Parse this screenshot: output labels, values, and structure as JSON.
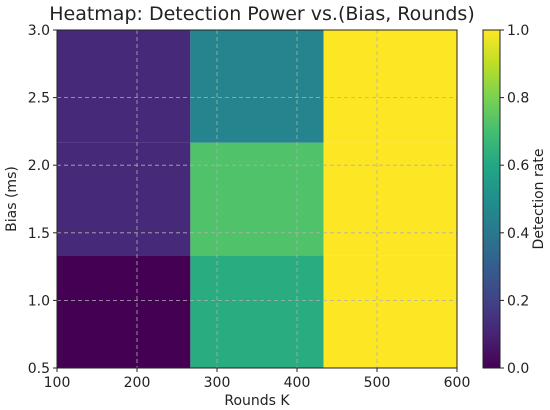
{
  "chart_data": {
    "type": "heatmap",
    "title": "Heatmap: Detection Power vs.(Bias, Rounds)",
    "xlabel": "Rounds K",
    "ylabel": "Bias (ms)",
    "xlim": [
      100,
      600
    ],
    "ylim": [
      0.5,
      3.0
    ],
    "xticks": [
      100,
      200,
      300,
      400,
      500,
      600
    ],
    "yticks": [
      0.5,
      1.0,
      1.5,
      2.0,
      2.5,
      3.0
    ],
    "x_edges": [
      100,
      266.7,
      433.3,
      600
    ],
    "y_edges": [
      0.5,
      1.333,
      2.167,
      3.0
    ],
    "columns_rounds": [
      100,
      350,
      600
    ],
    "rows_bias": [
      0.5,
      1.75,
      3.0
    ],
    "values": [
      [
        0.0,
        0.62,
        1.0
      ],
      [
        0.12,
        0.72,
        1.0
      ],
      [
        0.12,
        0.45,
        1.0
      ]
    ],
    "colorbar": {
      "label": "Detection rate",
      "range": [
        0.0,
        1.0
      ],
      "ticks": [
        0.0,
        0.2,
        0.4,
        0.6,
        0.8,
        1.0
      ]
    },
    "colormap": "viridis",
    "grid": true
  }
}
